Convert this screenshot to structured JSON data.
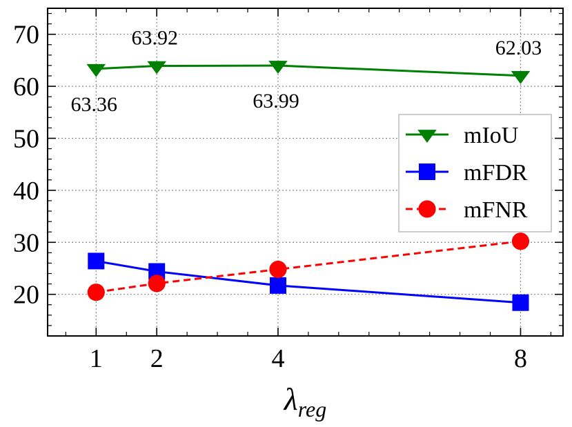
{
  "chart_data": {
    "type": "line",
    "x": [
      1,
      2,
      4,
      8
    ],
    "x_ticks": [
      "1",
      "2",
      "4",
      "8"
    ],
    "y_ticks": [
      "20",
      "30",
      "40",
      "50",
      "60",
      "70"
    ],
    "xlim": [
      0.2,
      8.7
    ],
    "ylim": [
      12,
      75
    ],
    "grid": true,
    "legend_position": "center-right",
    "xlabel": {
      "symbol": "λ",
      "subscript": "reg"
    },
    "ylabel": "",
    "title": "",
    "series": [
      {
        "name": "mIoU",
        "values": [
          63.36,
          63.92,
          63.99,
          62.03
        ],
        "color": "#008000",
        "marker": "triangle-down",
        "line_style": "solid",
        "labels": [
          "63.36",
          "63.92",
          "63.99",
          "62.03"
        ],
        "label_positions": [
          "below",
          "above",
          "below",
          "above"
        ]
      },
      {
        "name": "mFDR",
        "values": [
          26.4,
          24.4,
          21.7,
          18.4
        ],
        "color": "#0000ff",
        "marker": "square",
        "line_style": "solid"
      },
      {
        "name": "mFNR",
        "values": [
          20.4,
          22.1,
          24.8,
          30.2
        ],
        "color": "#ff0000",
        "marker": "circle",
        "line_style": "dashed"
      }
    ]
  }
}
